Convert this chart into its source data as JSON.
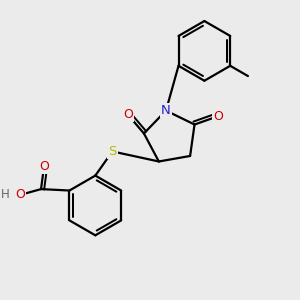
{
  "background_color": "#ebebeb",
  "atom_colors": {
    "C": "#000000",
    "N": "#2222cc",
    "O": "#cc0000",
    "S": "#b8b800",
    "H": "#666666"
  },
  "bond_color": "#000000",
  "bond_width": 1.6
}
